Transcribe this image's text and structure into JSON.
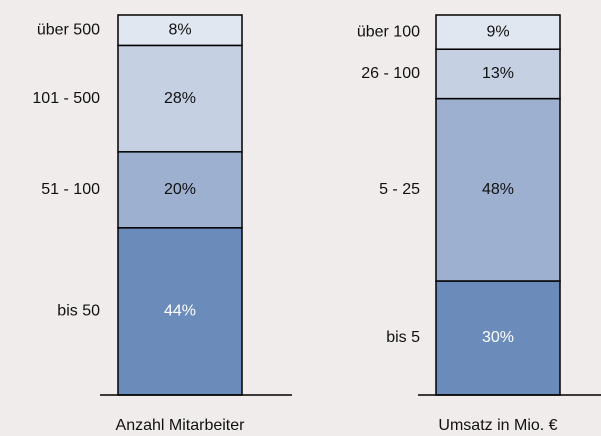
{
  "chart_data": [
    {
      "type": "stacked_bar",
      "categories": [
        "Anzahl Mitarbeiter"
      ],
      "ylim": [
        0,
        100
      ],
      "series": [
        {
          "name": "bis 50",
          "color": "#6b8cba",
          "values": [
            44
          ],
          "value_labels": [
            "44%"
          ]
        },
        {
          "name": "51 - 100",
          "color": "#9db0cf",
          "values": [
            20
          ],
          "value_labels": [
            "20%"
          ]
        },
        {
          "name": "101 - 500",
          "color": "#c5d0e3",
          "values": [
            28
          ],
          "value_labels": [
            "28%"
          ]
        },
        {
          "name": "über 500",
          "color": "#e1e7f1",
          "values": [
            8
          ],
          "value_labels": [
            "8%"
          ]
        }
      ]
    },
    {
      "type": "stacked_bar",
      "categories": [
        "Umsatz in Mio. €"
      ],
      "ylim": [
        0,
        100
      ],
      "series": [
        {
          "name": "bis 5",
          "color": "#6b8cba",
          "values": [
            30
          ],
          "value_labels": [
            "30%"
          ]
        },
        {
          "name": "5 - 25",
          "color": "#9db0cf",
          "values": [
            48
          ],
          "value_labels": [
            "48%"
          ]
        },
        {
          "name": "26 - 100",
          "color": "#c5d0e3",
          "values": [
            13
          ],
          "value_labels": [
            "13%"
          ]
        },
        {
          "name": "über 100",
          "color": "#e1e7f1",
          "values": [
            9
          ],
          "value_labels": [
            "9%"
          ]
        }
      ]
    }
  ]
}
